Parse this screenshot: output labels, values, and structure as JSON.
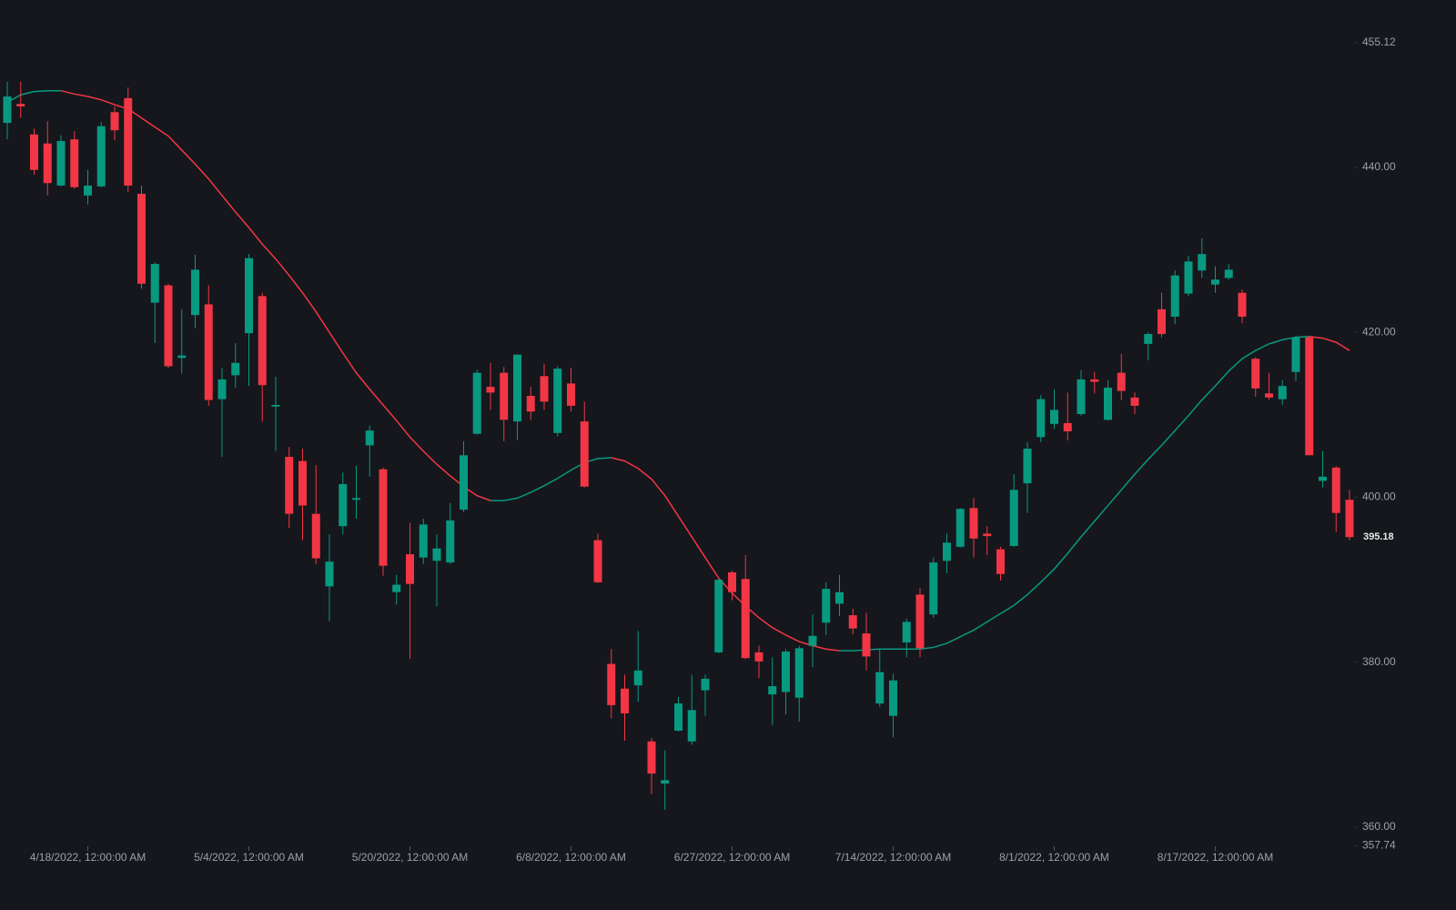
{
  "chart_data": {
    "type": "candlestick",
    "up_color": "#089981",
    "down_color": "#f23645",
    "categories": [
      null,
      null,
      null,
      null,
      null,
      null,
      "4/18/2022, 12:00:00 AM",
      null,
      null,
      null,
      null,
      null,
      null,
      null,
      null,
      null,
      null,
      null,
      "5/4/2022, 12:00:00 AM",
      null,
      null,
      null,
      null,
      null,
      null,
      null,
      null,
      null,
      null,
      null,
      "5/20/2022, 12:00:00 AM",
      null,
      null,
      null,
      null,
      null,
      null,
      null,
      null,
      null,
      null,
      null,
      "6/8/2022, 12:00:00 AM",
      null,
      null,
      null,
      null,
      null,
      null,
      null,
      null,
      null,
      null,
      null,
      "6/27/2022, 12:00:00 AM",
      null,
      null,
      null,
      null,
      null,
      null,
      null,
      null,
      null,
      null,
      null,
      "7/14/2022, 12:00:00 AM",
      null,
      null,
      null,
      null,
      null,
      null,
      null,
      null,
      null,
      null,
      null,
      "8/1/2022, 12:00:00 AM",
      null,
      null,
      null,
      null,
      null,
      null,
      null,
      null,
      null,
      null,
      null,
      "8/17/2022, 12:00:00 AM",
      null,
      null,
      null,
      null,
      null,
      null,
      null,
      null,
      null,
      null
    ],
    "open": [
      445.4,
      447.7,
      444.0,
      442.9,
      437.8,
      443.4,
      436.6,
      437.7,
      446.7,
      448.4,
      436.8,
      423.6,
      425.7,
      416.9,
      422.1,
      423.4,
      411.9,
      414.8,
      419.9,
      424.4,
      411.0,
      404.9,
      404.4,
      398.0,
      389.2,
      396.5,
      399.7,
      406.3,
      403.4,
      388.5,
      393.1,
      392.7,
      392.3,
      392.1,
      398.5,
      407.7,
      413.4,
      415.1,
      409.2,
      412.3,
      414.7,
      407.8,
      413.8,
      409.2,
      394.8,
      379.8,
      376.8,
      377.2,
      370.4,
      365.3,
      371.7,
      370.4,
      376.6,
      381.2,
      390.9,
      390.1,
      381.2,
      376.1,
      376.4,
      375.7,
      382.0,
      384.8,
      387.1,
      385.7,
      383.5,
      375.0,
      373.5,
      382.4,
      388.2,
      385.8,
      392.3,
      394.0,
      398.7,
      395.6,
      393.7,
      394.1,
      401.7,
      407.3,
      408.9,
      409.0,
      410.1,
      414.3,
      409.4,
      415.1,
      412.1,
      418.6,
      422.8,
      421.9,
      424.7,
      427.5,
      425.8,
      426.6,
      424.8,
      416.8,
      412.6,
      411.9,
      415.2,
      419.4,
      402.0,
      403.6,
      399.7
    ],
    "high": [
      450.4,
      450.4,
      444.7,
      445.6,
      443.9,
      444.4,
      439.7,
      445.5,
      447.4,
      449.7,
      437.8,
      428.5,
      425.9,
      422.8,
      429.4,
      425.7,
      415.7,
      418.7,
      429.5,
      424.8,
      414.6,
      406.1,
      405.9,
      403.9,
      395.5,
      403.0,
      403.8,
      408.7,
      403.6,
      390.6,
      396.9,
      397.4,
      395.5,
      399.3,
      406.8,
      415.5,
      416.3,
      415.8,
      417.3,
      413.4,
      416.2,
      415.9,
      415.7,
      411.6,
      395.6,
      381.6,
      378.5,
      383.8,
      370.8,
      369.3,
      375.8,
      378.5,
      378.5,
      390.1,
      391.1,
      393.0,
      382.0,
      380.6,
      381.6,
      382.0,
      385.8,
      389.7,
      390.6,
      386.5,
      386.0,
      381.6,
      378.6,
      385.3,
      389.0,
      392.7,
      395.6,
      398.7,
      399.9,
      396.5,
      394.0,
      402.8,
      406.7,
      412.4,
      413.1,
      412.7,
      415.4,
      415.2,
      414.2,
      417.4,
      412.7,
      420.0,
      424.8,
      427.5,
      429.3,
      431.4,
      428.0,
      428.3,
      425.2,
      417.0,
      415.1,
      414.2,
      419.6,
      419.6,
      405.6,
      403.8,
      400.9
    ],
    "low": [
      443.4,
      446.0,
      439.1,
      436.6,
      437.7,
      437.4,
      435.5,
      437.6,
      443.3,
      437.0,
      425.3,
      418.7,
      415.7,
      415.0,
      420.5,
      411.1,
      404.9,
      413.3,
      413.5,
      409.2,
      405.6,
      396.3,
      394.8,
      391.9,
      385.0,
      395.5,
      397.4,
      402.5,
      390.5,
      387.0,
      380.4,
      391.9,
      386.8,
      391.9,
      398.2,
      407.6,
      410.6,
      406.8,
      406.9,
      409.4,
      410.6,
      407.4,
      410.4,
      401.2,
      389.6,
      373.2,
      370.5,
      375.2,
      364.0,
      362.1,
      371.6,
      370.0,
      373.5,
      381.1,
      387.5,
      380.4,
      378.1,
      372.4,
      373.7,
      372.8,
      379.4,
      383.3,
      385.6,
      383.4,
      379.0,
      374.6,
      370.9,
      380.6,
      380.6,
      385.4,
      390.8,
      393.9,
      392.7,
      393.0,
      389.9,
      394.0,
      398.1,
      406.7,
      408.3,
      406.9,
      409.9,
      412.6,
      409.3,
      411.8,
      410.1,
      416.6,
      419.4,
      421.0,
      424.4,
      426.6,
      424.8,
      426.4,
      421.1,
      412.2,
      411.8,
      411.2,
      414.1,
      405.1,
      401.2,
      395.8,
      394.8
    ],
    "close": [
      448.6,
      447.4,
      439.7,
      438.1,
      443.2,
      437.6,
      437.8,
      445.0,
      444.5,
      437.8,
      425.9,
      428.3,
      415.9,
      417.2,
      427.6,
      411.8,
      414.3,
      416.3,
      429.0,
      413.6,
      411.2,
      398.0,
      399.0,
      392.6,
      392.2,
      401.6,
      399.9,
      408.1,
      391.7,
      389.4,
      389.5,
      396.7,
      393.8,
      397.2,
      405.1,
      415.1,
      412.7,
      409.4,
      417.3,
      410.4,
      411.6,
      415.6,
      411.1,
      401.3,
      389.7,
      374.8,
      373.8,
      379.0,
      366.5,
      365.7,
      375.0,
      374.2,
      378.0,
      390.0,
      388.5,
      380.5,
      380.1,
      377.1,
      381.3,
      381.7,
      383.2,
      388.9,
      388.5,
      384.1,
      380.7,
      378.8,
      377.8,
      384.9,
      381.7,
      392.1,
      394.5,
      398.6,
      395.0,
      395.3,
      390.7,
      400.9,
      405.9,
      411.9,
      410.6,
      408.0,
      414.3,
      414.0,
      413.3,
      412.9,
      411.1,
      419.8,
      419.8,
      426.9,
      428.6,
      429.5,
      426.4,
      427.6,
      421.9,
      413.2,
      412.1,
      413.5,
      419.4,
      405.1,
      402.5,
      398.1,
      395.18
    ],
    "moving_average": [
      447.9,
      448.8,
      449.2,
      449.3,
      449.3,
      448.9,
      448.6,
      448.2,
      447.6,
      447.1,
      446.0,
      444.9,
      443.8,
      442.1,
      440.4,
      438.6,
      436.6,
      434.6,
      432.7,
      430.7,
      428.9,
      426.9,
      424.8,
      422.5,
      420.0,
      417.5,
      415.1,
      413.1,
      411.2,
      409.3,
      407.3,
      405.6,
      404.0,
      402.6,
      401.3,
      400.2,
      399.6,
      399.6,
      399.9,
      400.6,
      401.4,
      402.3,
      403.3,
      404.2,
      404.7,
      404.8,
      404.4,
      403.5,
      402.2,
      400.2,
      397.7,
      395.2,
      392.7,
      390.2,
      388.4,
      386.8,
      385.4,
      384.2,
      383.3,
      382.5,
      382.0,
      381.6,
      381.4,
      381.4,
      381.5,
      381.6,
      381.6,
      381.6,
      381.6,
      381.8,
      382.3,
      383.1,
      383.9,
      384.9,
      385.9,
      386.9,
      388.2,
      389.7,
      391.3,
      393.2,
      395.2,
      397.1,
      399.0,
      400.9,
      402.8,
      404.6,
      406.3,
      408.1,
      409.9,
      411.8,
      413.5,
      415.3,
      416.8,
      417.8,
      418.6,
      419.1,
      419.4,
      419.5,
      419.3,
      418.8,
      417.8
    ],
    "ylim": [
      357.74,
      460.3
    ],
    "yticks": [
      455.12,
      {
        "value": 440,
        "label": "440.00"
      },
      {
        "value": 420,
        "label": "420.00"
      },
      {
        "value": 400,
        "label": "400.00"
      },
      {
        "value": 380,
        "label": "380.00"
      },
      {
        "value": 360,
        "label": "360.00"
      },
      357.74
    ]
  }
}
